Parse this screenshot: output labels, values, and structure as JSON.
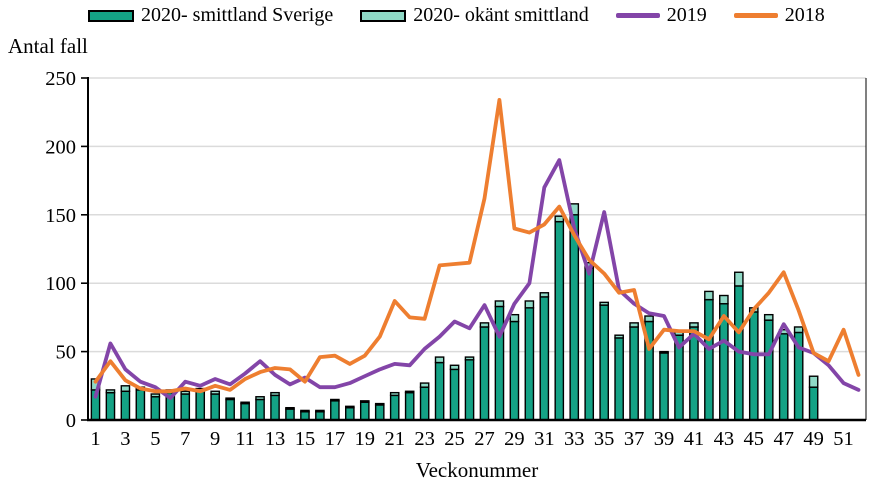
{
  "chart_data": {
    "type": "bar",
    "subtype": "stacked-bars-with-lines",
    "title": "",
    "ylabel": "Antal fall",
    "xlabel": "Veckonummer",
    "ylim": [
      0,
      250
    ],
    "y_ticks": [
      0,
      50,
      100,
      150,
      200,
      250
    ],
    "x_tick_labels": [
      1,
      3,
      5,
      7,
      9,
      11,
      13,
      15,
      17,
      19,
      21,
      23,
      25,
      27,
      29,
      31,
      33,
      35,
      37,
      39,
      41,
      43,
      45,
      47,
      49,
      51
    ],
    "weeks": [
      1,
      2,
      3,
      4,
      5,
      6,
      7,
      8,
      9,
      10,
      11,
      12,
      13,
      14,
      15,
      16,
      17,
      18,
      19,
      20,
      21,
      22,
      23,
      24,
      25,
      26,
      27,
      28,
      29,
      30,
      31,
      32,
      33,
      34,
      35,
      36,
      37,
      38,
      39,
      40,
      41,
      42,
      43,
      44,
      45,
      46,
      47,
      48,
      49,
      50,
      51,
      52
    ],
    "grid": true,
    "legend_position": "top",
    "bar_series": [
      {
        "name": "2020- smittland Sverige",
        "color": "#14A285",
        "values": [
          22,
          20,
          21,
          22,
          17,
          20,
          19,
          21,
          19,
          15,
          12,
          15,
          18,
          8,
          6,
          6,
          14,
          9,
          13,
          11,
          18,
          20,
          24,
          42,
          37,
          44,
          68,
          83,
          72,
          82,
          90,
          145,
          150,
          111,
          84,
          60,
          68,
          72,
          49,
          62,
          68,
          88,
          85,
          98,
          79,
          73,
          63,
          64,
          24,
          0,
          0,
          0
        ]
      },
      {
        "name": "2020- okänt smittland",
        "color": "#8FD9C6",
        "values": [
          8,
          2,
          4,
          2,
          2,
          2,
          2,
          2,
          2,
          1,
          1,
          2,
          2,
          1,
          1,
          1,
          1,
          1,
          1,
          1,
          2,
          1,
          3,
          4,
          3,
          2,
          3,
          4,
          5,
          5,
          3,
          4,
          8,
          4,
          2,
          2,
          3,
          4,
          1,
          3,
          3,
          6,
          6,
          10,
          3,
          4,
          3,
          4,
          8,
          0,
          0,
          0
        ]
      }
    ],
    "line_series": [
      {
        "name": "2019",
        "color": "#8345A8",
        "values": [
          17,
          56,
          37,
          28,
          24,
          16,
          28,
          25,
          30,
          26,
          34,
          43,
          33,
          26,
          31,
          24,
          24,
          27,
          32,
          37,
          41,
          40,
          52,
          61,
          72,
          67,
          84,
          61,
          85,
          100,
          170,
          190,
          140,
          107,
          152,
          95,
          85,
          78,
          76,
          53,
          63,
          52,
          58,
          50,
          48,
          48,
          70,
          53,
          49,
          40,
          27,
          22
        ]
      },
      {
        "name": "2018",
        "color": "#EE7E30",
        "values": [
          28,
          43,
          29,
          23,
          21,
          21,
          23,
          21,
          25,
          22,
          30,
          35,
          38,
          37,
          28,
          46,
          47,
          41,
          47,
          61,
          87,
          75,
          74,
          113,
          114,
          115,
          162,
          234,
          140,
          137,
          143,
          156,
          135,
          117,
          107,
          93,
          95,
          52,
          66,
          65,
          65,
          59,
          76,
          64,
          81,
          93,
          108,
          80,
          49,
          43,
          66,
          33
        ]
      }
    ],
    "colors": {
      "grid": "#DBDBDB",
      "axis": "#000000",
      "bar_outline": "#000000"
    }
  }
}
